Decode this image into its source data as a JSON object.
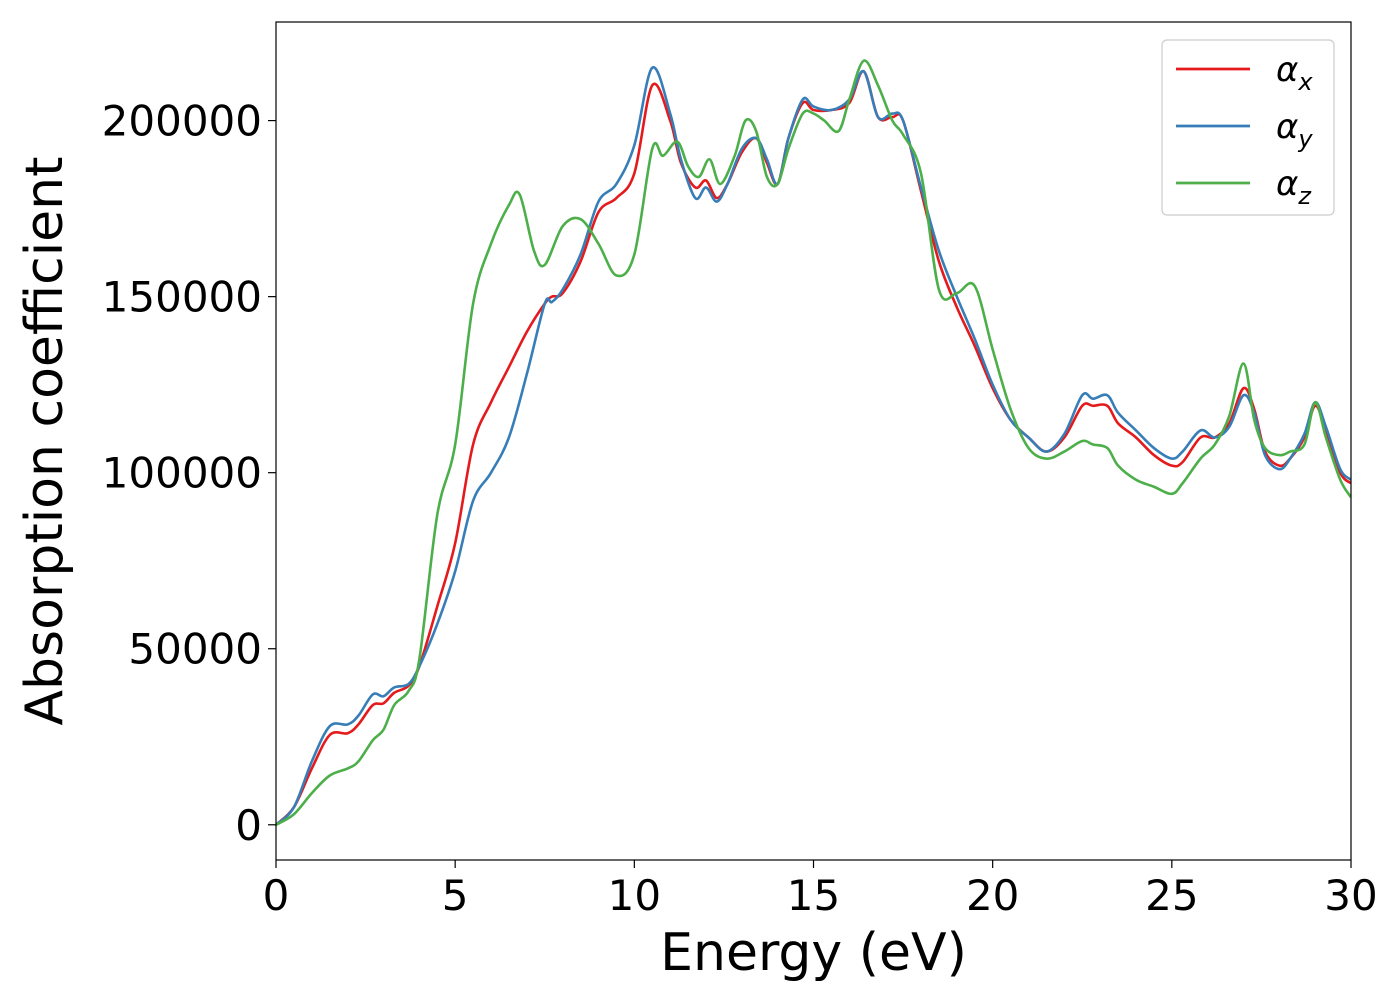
{
  "chart_data": {
    "type": "line",
    "title": "",
    "xlabel": "Energy (eV)",
    "ylabel": "Absorption coefficient",
    "xlim": [
      0,
      30
    ],
    "ylim": [
      -10000,
      228000
    ],
    "xticks": [
      0,
      5,
      10,
      15,
      20,
      25,
      30
    ],
    "xtick_labels": [
      "0",
      "5",
      "10",
      "15",
      "20",
      "25",
      "30"
    ],
    "yticks": [
      0,
      50000,
      100000,
      150000,
      200000
    ],
    "ytick_labels": [
      "0",
      "50000",
      "100000",
      "150000",
      "200000"
    ],
    "grid": false,
    "legend_position": "top-right",
    "colors": {
      "alpha_x": "#e41a1c",
      "alpha_y": "#377eb8",
      "alpha_z": "#4daf4a"
    },
    "series": [
      {
        "name": "α",
        "subscript": "x",
        "color": "#e41a1c",
        "x": [
          0,
          0.5,
          1.0,
          1.5,
          2.0,
          2.3,
          2.7,
          3.0,
          3.3,
          3.7,
          4.0,
          4.5,
          5.0,
          5.5,
          6.0,
          6.5,
          7.0,
          7.5,
          7.7,
          8.0,
          8.5,
          9.0,
          9.5,
          10.0,
          10.5,
          11.0,
          11.3,
          11.7,
          12.0,
          12.3,
          12.6,
          13.0,
          13.4,
          13.7,
          14.0,
          14.3,
          14.7,
          15.0,
          15.5,
          16.0,
          16.4,
          16.8,
          17.2,
          17.5,
          18.0,
          18.5,
          19.0,
          19.5,
          20.0,
          20.5,
          21.0,
          21.5,
          22.0,
          22.5,
          22.8,
          23.2,
          23.5,
          24.0,
          24.5,
          25.0,
          25.3,
          25.8,
          26.2,
          26.6,
          27.0,
          27.3,
          27.6,
          28.0,
          28.3,
          28.7,
          29.0,
          29.3,
          29.7,
          30.0
        ],
        "y": [
          0,
          5000,
          16000,
          25500,
          26000,
          28500,
          34000,
          34500,
          37500,
          39500,
          45000,
          62000,
          80000,
          108000,
          120000,
          130000,
          140000,
          148000,
          150000,
          151000,
          160000,
          174000,
          178000,
          185000,
          210000,
          200000,
          188000,
          181000,
          183000,
          178000,
          182000,
          191000,
          195000,
          188000,
          182000,
          195000,
          205000,
          203000,
          203000,
          205000,
          214000,
          201000,
          201000,
          200000,
          180000,
          160000,
          147000,
          136000,
          124000,
          115000,
          110000,
          106000,
          110000,
          119000,
          119000,
          119000,
          114000,
          110000,
          105000,
          102000,
          103000,
          110000,
          110000,
          114000,
          124000,
          118000,
          106000,
          102000,
          104000,
          110000,
          119000,
          112000,
          100000,
          97000
        ]
      },
      {
        "name": "α",
        "subscript": "y",
        "color": "#377eb8",
        "x": [
          0,
          0.5,
          1.0,
          1.5,
          2.0,
          2.3,
          2.7,
          3.0,
          3.3,
          3.7,
          4.0,
          4.5,
          5.0,
          5.5,
          6.0,
          6.5,
          7.0,
          7.5,
          7.7,
          8.0,
          8.5,
          9.0,
          9.5,
          10.0,
          10.5,
          11.0,
          11.3,
          11.7,
          12.0,
          12.3,
          12.6,
          13.0,
          13.4,
          13.7,
          14.0,
          14.3,
          14.7,
          15.0,
          15.5,
          16.0,
          16.4,
          16.8,
          17.2,
          17.5,
          18.0,
          18.5,
          19.0,
          19.5,
          20.0,
          20.5,
          21.0,
          21.5,
          22.0,
          22.5,
          22.8,
          23.2,
          23.5,
          24.0,
          24.5,
          25.0,
          25.3,
          25.8,
          26.2,
          26.6,
          27.0,
          27.3,
          27.6,
          28.0,
          28.3,
          28.7,
          29.0,
          29.3,
          29.7,
          30.0
        ],
        "y": [
          0,
          5000,
          18000,
          28000,
          28500,
          31000,
          37000,
          36500,
          39000,
          40000,
          45000,
          57000,
          72000,
          92000,
          100000,
          110000,
          128000,
          148000,
          148500,
          152000,
          162000,
          177000,
          182000,
          193000,
          215000,
          202000,
          189000,
          178000,
          181000,
          177000,
          182000,
          192000,
          195000,
          189000,
          182000,
          195000,
          206000,
          204000,
          203000,
          206000,
          214000,
          201000,
          202000,
          200000,
          181000,
          163000,
          150000,
          138000,
          125000,
          115000,
          110000,
          106000,
          111000,
          122000,
          121000,
          122000,
          117000,
          112000,
          107000,
          104000,
          106000,
          112000,
          110000,
          113000,
          122000,
          117000,
          105000,
          101000,
          104000,
          111000,
          120000,
          113000,
          101000,
          98000
        ]
      },
      {
        "name": "α",
        "subscript": "z",
        "color": "#4daf4a",
        "x": [
          0,
          0.5,
          1.0,
          1.5,
          2.0,
          2.3,
          2.7,
          3.0,
          3.3,
          3.7,
          4.0,
          4.5,
          5.0,
          5.5,
          6.0,
          6.5,
          6.8,
          7.2,
          7.5,
          8.0,
          8.5,
          9.0,
          9.5,
          10.0,
          10.5,
          10.8,
          11.2,
          11.5,
          11.8,
          12.1,
          12.4,
          12.8,
          13.1,
          13.4,
          13.7,
          14.0,
          14.3,
          14.7,
          15.0,
          15.3,
          15.7,
          16.0,
          16.4,
          16.8,
          17.2,
          17.5,
          18.0,
          18.5,
          19.0,
          19.5,
          20.0,
          20.5,
          21.0,
          21.5,
          22.0,
          22.5,
          22.8,
          23.2,
          23.5,
          24.0,
          24.5,
          25.0,
          25.3,
          25.8,
          26.2,
          26.6,
          27.0,
          27.3,
          27.6,
          28.0,
          28.3,
          28.7,
          29.0,
          29.3,
          29.7,
          30.0
        ],
        "y": [
          0,
          3000,
          9000,
          14000,
          16000,
          18000,
          24000,
          27000,
          34000,
          38000,
          47000,
          88000,
          108000,
          148000,
          165000,
          176000,
          179000,
          163000,
          159000,
          170000,
          172000,
          165000,
          156000,
          162000,
          192000,
          190000,
          194000,
          187000,
          184000,
          189000,
          182000,
          190000,
          200000,
          197000,
          184000,
          182000,
          192000,
          202000,
          202000,
          200000,
          197000,
          206000,
          217000,
          210000,
          200000,
          196000,
          185000,
          152000,
          151000,
          153000,
          135000,
          118000,
          107000,
          104000,
          106000,
          109000,
          108000,
          107000,
          102000,
          98000,
          96000,
          94000,
          97000,
          104000,
          108000,
          116000,
          131000,
          115000,
          107000,
          105000,
          106000,
          108000,
          120000,
          110000,
          98000,
          93000
        ]
      }
    ]
  }
}
